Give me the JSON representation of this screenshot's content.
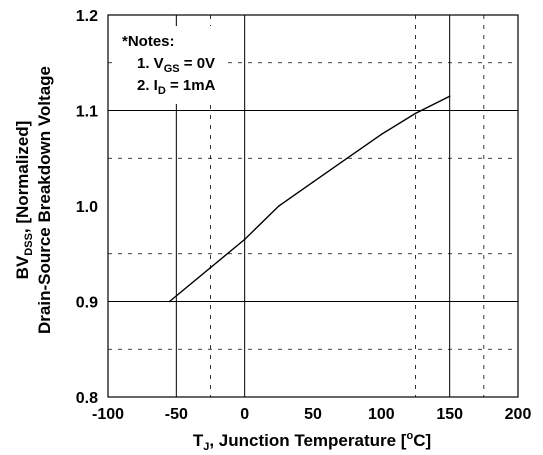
{
  "chart_data": {
    "type": "line",
    "xlabel": {
      "main": "T",
      "sub": "J",
      "rest": ", Junction Temperature [",
      "sup": "o",
      "end": "C]"
    },
    "ylabel_line1": {
      "main": "BV",
      "sub": "DSS",
      "rest": ", [Normalized]"
    },
    "ylabel_line2": "Drain-Source Breakdown Voltage",
    "xlim": [
      -100,
      200
    ],
    "ylim": [
      0.8,
      1.2
    ],
    "x_ticks": [
      "-100",
      "-50",
      "0",
      "50",
      "100",
      "150",
      "200"
    ],
    "y_ticks": [
      "0.8",
      "0.9",
      "1.0",
      "1.1",
      "1.2"
    ],
    "grid": "solid major lines, dashed minor lines",
    "notes": {
      "title": "*Notes:",
      "line1": {
        "prefix": "1. V",
        "sub": "GS",
        "suffix": " = 0V"
      },
      "line2": {
        "prefix": "2. I",
        "sub": "D",
        "suffix": " = 1mA"
      }
    },
    "series": [
      {
        "x": [
          -55,
          0,
          25,
          50,
          75,
          100,
          125,
          150
        ],
        "y": [
          0.9,
          0.965,
          1.0,
          1.025,
          1.05,
          1.075,
          1.097,
          1.115
        ]
      }
    ]
  }
}
